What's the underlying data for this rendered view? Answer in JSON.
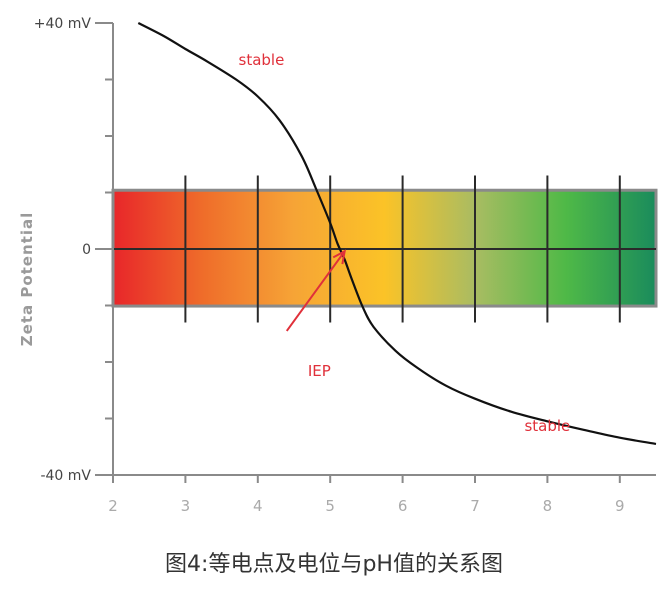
{
  "chart_data": {
    "type": "line",
    "title": "",
    "xlabel": "",
    "ylabel": "Zeta Potential",
    "xlim": [
      2,
      9.5
    ],
    "ylim": [
      -40,
      40
    ],
    "x_ticks": [
      2,
      3,
      4,
      5,
      6,
      7,
      8,
      9
    ],
    "x_tick_labels": [
      "2",
      "3",
      "4",
      "5",
      "6",
      "7",
      "8",
      "9"
    ],
    "y_tick_labels": [
      {
        "value": 40,
        "label": "+40 mV"
      },
      {
        "value": 0,
        "label": "0"
      },
      {
        "value": -40,
        "label": "-40 mV"
      }
    ],
    "y_minor_ticks": [
      30,
      20,
      10,
      -10,
      -20,
      -30
    ],
    "series": [
      {
        "name": "",
        "color": "#111111",
        "x": [
          2.35,
          2.7,
          3.0,
          3.3,
          3.7,
          4.0,
          4.3,
          4.6,
          4.8,
          5.0,
          5.1,
          5.2,
          5.3,
          5.45,
          5.6,
          5.9,
          6.2,
          6.6,
          7.0,
          7.5,
          8.0,
          8.5,
          9.0,
          9.5
        ],
        "y": [
          40,
          37.7,
          35.4,
          33.2,
          30.0,
          27.0,
          22.8,
          16.6,
          10.8,
          4.6,
          1.0,
          -1.9,
          -5.4,
          -10.3,
          -13.8,
          -18.0,
          -21.0,
          -24.2,
          -26.5,
          -28.8,
          -30.5,
          -32.0,
          -33.4,
          -34.5
        ]
      }
    ],
    "band": {
      "y_top": 10.4,
      "y_bottom": -10.1,
      "colors": [
        "#e8262a",
        "#ef6d2a",
        "#f6a436",
        "#fbc327",
        "#a9bc62",
        "#4fb947",
        "#1a8b5c"
      ],
      "grid_x": [
        3,
        4,
        5,
        6,
        7,
        8,
        9
      ],
      "grid_tick_top": 13,
      "grid_tick_bottom": -13
    },
    "annotations": [
      {
        "text": "stable",
        "x": 4.05,
        "y": 32.6
      },
      {
        "text": "stable",
        "x": 8.0,
        "y": -32.2
      },
      {
        "text": "IEP",
        "x": 4.85,
        "y": -22.5
      }
    ],
    "iep_arrow": {
      "from": [
        4.4,
        -14.5
      ],
      "to": [
        5.2,
        -0.4
      ]
    },
    "accent_color": "#e0303a",
    "grid": false
  },
  "caption": "图4:等电点及电位与pH值的关系图"
}
